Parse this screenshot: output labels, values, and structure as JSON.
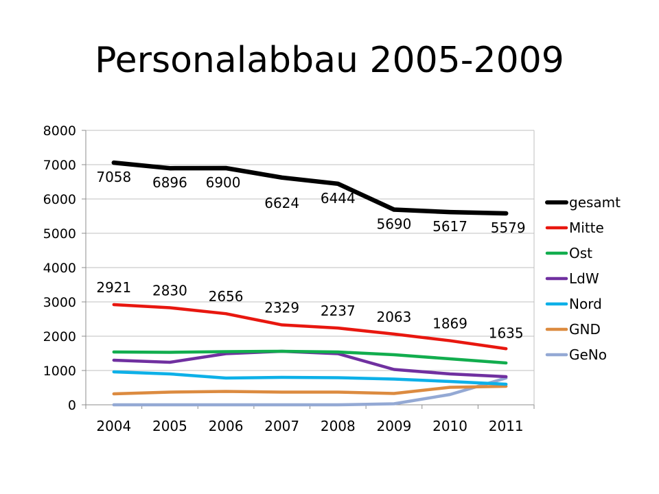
{
  "slide": {
    "title": "Personalabbau 2005-2009"
  },
  "chart_data": {
    "type": "line",
    "categories": [
      "2004",
      "2005",
      "2006",
      "2007",
      "2008",
      "2009",
      "2010",
      "2011"
    ],
    "ylim": [
      0,
      8000
    ],
    "yticks": [
      0,
      1000,
      2000,
      3000,
      4000,
      5000,
      6000,
      7000,
      8000
    ],
    "grid": true,
    "legend": "right",
    "series": [
      {
        "name": "gesamt",
        "color": "#000000",
        "values": [
          7058,
          6896,
          6900,
          6624,
          6444,
          5690,
          5617,
          5579
        ],
        "labels": [
          "7058",
          "6896",
          "6900",
          "6624",
          "6444",
          "5690",
          "5617",
          "5579"
        ]
      },
      {
        "name": "Mitte",
        "color": "#e8170f",
        "values": [
          2921,
          2830,
          2656,
          2329,
          2237,
          2063,
          1869,
          1635
        ],
        "labels": [
          "2921",
          "2830",
          "2656",
          "2329",
          "2237",
          "2063",
          "1869",
          "1635"
        ]
      },
      {
        "name": "Ost",
        "color": "#12ad4e",
        "values": [
          1540,
          1530,
          1550,
          1560,
          1540,
          1460,
          1340,
          1220
        ]
      },
      {
        "name": "LdW",
        "color": "#7030a0",
        "values": [
          1300,
          1240,
          1490,
          1560,
          1490,
          1030,
          900,
          820
        ]
      },
      {
        "name": "Nord",
        "color": "#0db0e8",
        "values": [
          960,
          900,
          780,
          800,
          790,
          750,
          680,
          600
        ]
      },
      {
        "name": "GND",
        "color": "#dc8b40",
        "values": [
          320,
          370,
          390,
          370,
          370,
          330,
          510,
          540
        ]
      },
      {
        "name": "GeNo",
        "color": "#94a9d4",
        "values": [
          0,
          0,
          0,
          0,
          0,
          30,
          300,
          780
        ]
      }
    ]
  }
}
